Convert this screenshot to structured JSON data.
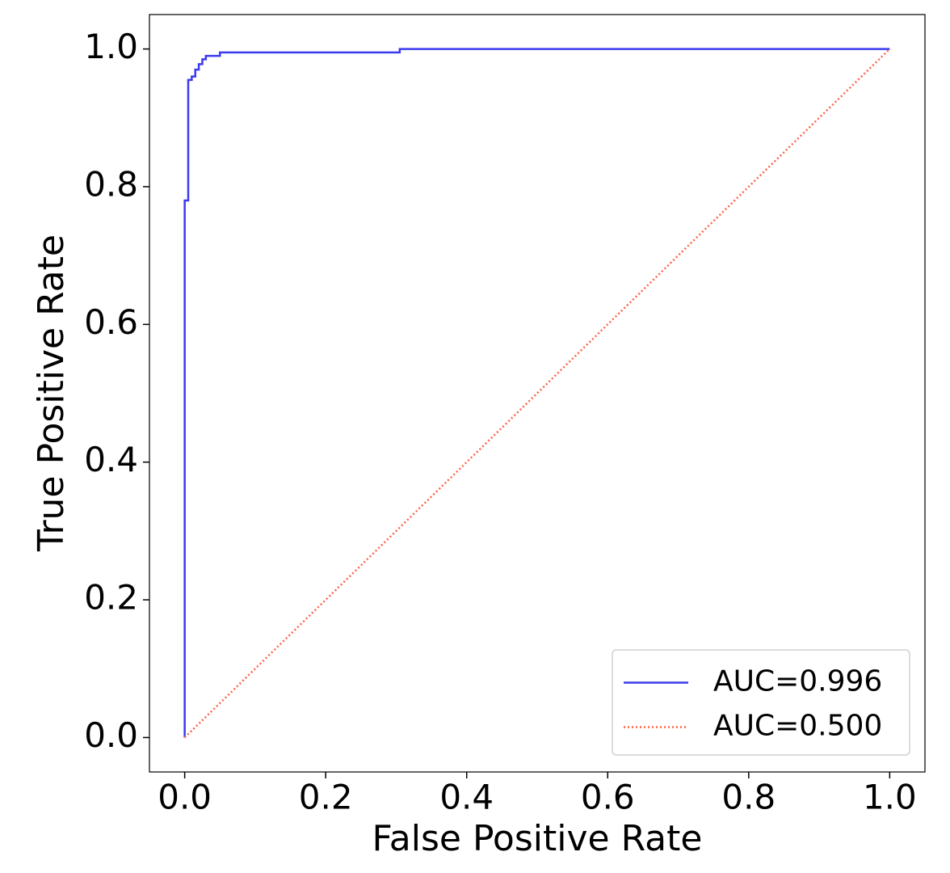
{
  "chart_data": {
    "type": "line",
    "xlabel": "False Positive Rate",
    "ylabel": "True Positive Rate",
    "xlim": [
      -0.05,
      1.05
    ],
    "ylim": [
      -0.05,
      1.05
    ],
    "xticks": [
      {
        "value": 0,
        "label": "0.0"
      },
      0.2,
      0.4,
      0.6,
      0.8,
      {
        "value": 1,
        "label": "1.0"
      }
    ],
    "yticks": [
      {
        "value": 0,
        "label": "0.0"
      },
      0.2,
      0.4,
      0.6,
      0.8,
      {
        "value": 1,
        "label": "1.0"
      }
    ],
    "grid": false,
    "legend": "lower right",
    "series": [
      {
        "name": "AUC=0.996",
        "color": "#3b3bef",
        "linestyle": "solid",
        "x": [
          0,
          0,
          0.005,
          0.005,
          0.01,
          0.01,
          0.015,
          0.015,
          0.02,
          0.02,
          0.025,
          0.025,
          0.03,
          0.03,
          0.05,
          0.05,
          0.305,
          0.305,
          1
        ],
        "values": [
          0,
          0.78,
          0.78,
          0.955,
          0.955,
          0.96,
          0.96,
          0.97,
          0.97,
          0.978,
          0.978,
          0.985,
          0.985,
          0.99,
          0.99,
          0.995,
          0.995,
          1,
          1
        ]
      },
      {
        "name": "AUC=0.500",
        "color": "#ff6347",
        "linestyle": "dotted",
        "x": [
          0,
          1
        ],
        "values": [
          0,
          1
        ]
      }
    ]
  }
}
